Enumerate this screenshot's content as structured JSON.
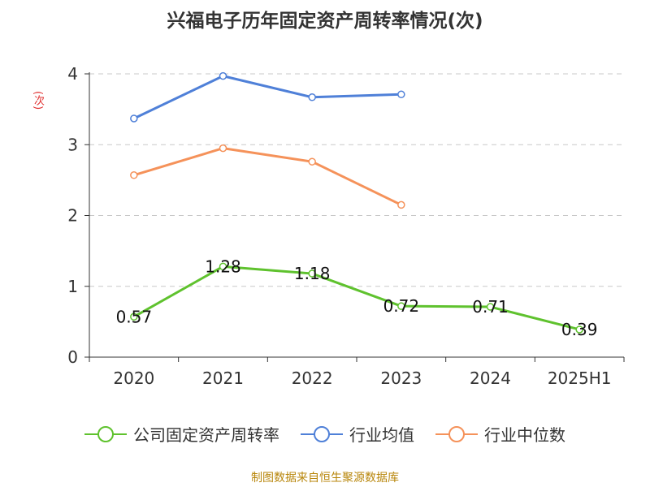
{
  "title": "兴福电子历年固定资产周转率情况(次)",
  "source": "制图数据来自恒生聚源数据库",
  "chart_data": {
    "type": "line",
    "title": "兴福电子历年固定资产周转率情况(次)",
    "xlabel": "",
    "ylabel": "(次)",
    "categories": [
      "2020",
      "2021",
      "2022",
      "2023",
      "2024",
      "2025H1"
    ],
    "ylim": [
      0,
      4
    ],
    "yticks": [
      0,
      1,
      2,
      3,
      4
    ],
    "grid": true,
    "legend_position": "bottom",
    "series": [
      {
        "name": "公司固定资产周转率",
        "color": "#5fc22e",
        "values": [
          0.57,
          1.28,
          1.18,
          0.72,
          0.71,
          0.39
        ],
        "labels": [
          "0.57",
          "1.28",
          "1.18",
          "0.72",
          "0.71",
          "0.39"
        ]
      },
      {
        "name": "行业均值",
        "color": "#4f80d8",
        "values": [
          3.37,
          3.97,
          3.67,
          3.71,
          null,
          null
        ]
      },
      {
        "name": "行业中位数",
        "color": "#f5925a",
        "values": [
          2.57,
          2.95,
          2.76,
          2.15,
          null,
          null
        ]
      }
    ]
  }
}
